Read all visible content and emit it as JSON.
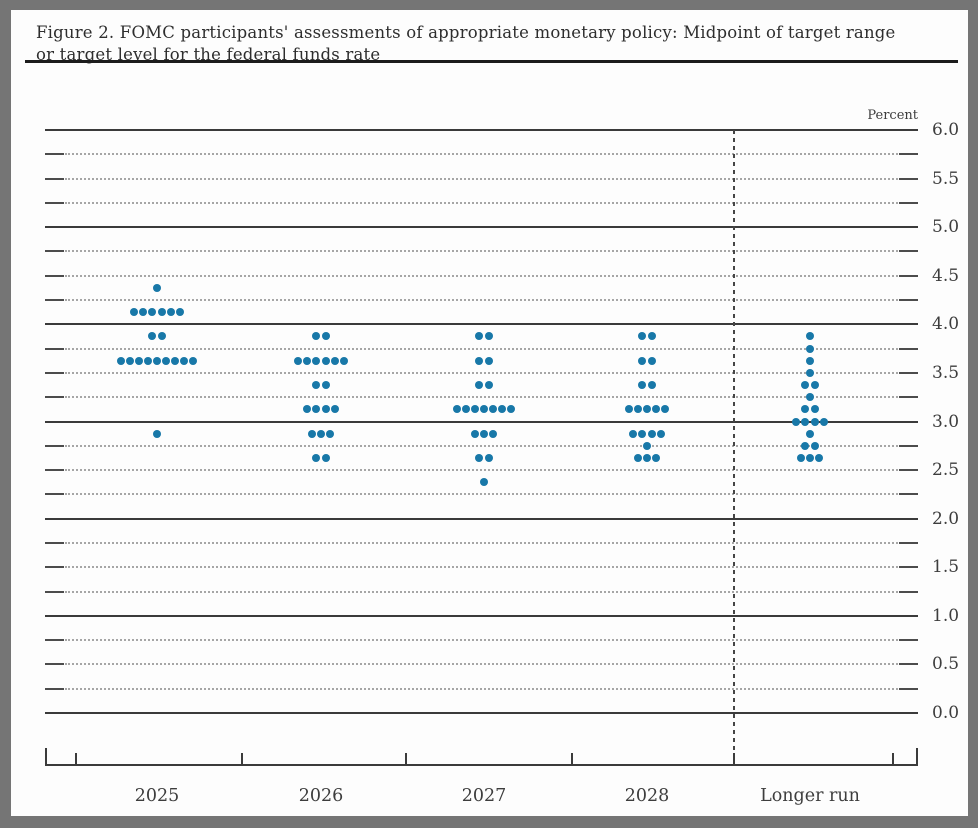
{
  "figure": {
    "title_line1": "Figure 2. FOMC participants' assessments of appropriate monetary policy: Midpoint of target range",
    "title_line2": "or target level for the federal funds rate"
  },
  "chart_data": {
    "type": "scatter",
    "subtype": "fomc-dot-plot",
    "title": "Figure 2. FOMC participants' assessments of appropriate monetary policy: Midpoint of target range or target level for the federal funds rate",
    "xlabel": "",
    "ylabel": "",
    "unit_label": "Percent",
    "ylim": [
      0.0,
      6.0
    ],
    "y_label_step": 0.5,
    "y_minor_step": 0.25,
    "y_tick_labels": [
      "6.0",
      "5.5",
      "5.0",
      "4.5",
      "4.0",
      "3.5",
      "3.0",
      "2.5",
      "2.0",
      "1.5",
      "1.0",
      "0.5",
      "0.0"
    ],
    "grid": "solid lines at whole percents, dotted lines at quarter percents",
    "legend_position": "none",
    "categories": [
      "2025",
      "2026",
      "2027",
      "2028",
      "Longer run"
    ],
    "series": [
      {
        "name": "2025",
        "dots": [
          {
            "rate": 4.375,
            "count": 1
          },
          {
            "rate": 4.125,
            "count": 6
          },
          {
            "rate": 3.875,
            "count": 2
          },
          {
            "rate": 3.625,
            "count": 9
          },
          {
            "rate": 2.875,
            "count": 1
          }
        ]
      },
      {
        "name": "2026",
        "dots": [
          {
            "rate": 3.875,
            "count": 2
          },
          {
            "rate": 3.625,
            "count": 6
          },
          {
            "rate": 3.375,
            "count": 2
          },
          {
            "rate": 3.125,
            "count": 4
          },
          {
            "rate": 2.875,
            "count": 3
          },
          {
            "rate": 2.625,
            "count": 2
          }
        ]
      },
      {
        "name": "2027",
        "dots": [
          {
            "rate": 3.875,
            "count": 2
          },
          {
            "rate": 3.625,
            "count": 2
          },
          {
            "rate": 3.375,
            "count": 2
          },
          {
            "rate": 3.125,
            "count": 7
          },
          {
            "rate": 2.875,
            "count": 3
          },
          {
            "rate": 2.625,
            "count": 2
          },
          {
            "rate": 2.375,
            "count": 1
          }
        ]
      },
      {
        "name": "2028",
        "dots": [
          {
            "rate": 3.875,
            "count": 2
          },
          {
            "rate": 3.625,
            "count": 2
          },
          {
            "rate": 3.375,
            "count": 2
          },
          {
            "rate": 3.125,
            "count": 5
          },
          {
            "rate": 2.875,
            "count": 4
          },
          {
            "rate": 2.75,
            "count": 1
          },
          {
            "rate": 2.625,
            "count": 3
          }
        ]
      },
      {
        "name": "Longer run",
        "dots": [
          {
            "rate": 3.875,
            "count": 1
          },
          {
            "rate": 3.75,
            "count": 1
          },
          {
            "rate": 3.625,
            "count": 1
          },
          {
            "rate": 3.5,
            "count": 1
          },
          {
            "rate": 3.375,
            "count": 2
          },
          {
            "rate": 3.25,
            "count": 1
          },
          {
            "rate": 3.125,
            "count": 2
          },
          {
            "rate": 3.0,
            "count": 4
          },
          {
            "rate": 2.875,
            "count": 1
          },
          {
            "rate": 2.75,
            "count": 2
          },
          {
            "rate": 2.625,
            "count": 3
          }
        ]
      }
    ],
    "colors": {
      "dot": "#1878a8",
      "major_grid": "#3b3b3b",
      "minor_grid": "#a6a6a6",
      "axis_text": "#3d3d3d",
      "page_border": "#757575"
    }
  }
}
